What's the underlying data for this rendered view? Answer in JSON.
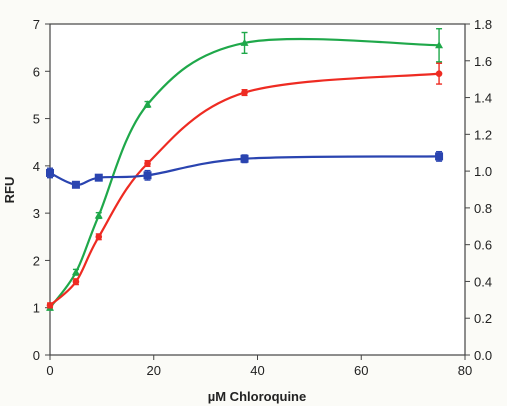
{
  "chart_data": {
    "type": "line",
    "title": "",
    "xlabel": "µM Chloroquine",
    "ylabel": "RFU",
    "ylabel_right": "",
    "xlim": [
      0,
      80
    ],
    "ylim": [
      0,
      7
    ],
    "ylim_right": [
      0,
      1.8
    ],
    "x_ticks": [
      "0",
      "20",
      "40",
      "60",
      "80"
    ],
    "y_ticks": [
      "0",
      "1",
      "2",
      "3",
      "4",
      "5",
      "6",
      "7"
    ],
    "y_ticks_right": [
      "0.0",
      "0.2",
      "0.4",
      "0.6",
      "0.8",
      "1.0",
      "1.2",
      "1.4",
      "1.6",
      "1.8"
    ],
    "grid": false,
    "legend": "none",
    "series": [
      {
        "color": "#1fa84a",
        "marker": "triangle",
        "x": [
          0,
          5,
          9.4,
          18.8,
          37.5,
          75
        ],
        "y": [
          1.0,
          1.75,
          2.95,
          5.3,
          6.6,
          6.55
        ],
        "err": [
          0.05,
          0.06,
          0.06,
          0.06,
          0.22,
          0.35
        ]
      },
      {
        "color": "#ee2b22",
        "marker": "circle",
        "x": [
          0,
          5,
          9.4,
          18.8,
          37.5,
          75
        ],
        "y": [
          1.05,
          1.55,
          2.5,
          4.05,
          5.55,
          5.95
        ],
        "err": [
          0.05,
          0.06,
          0.06,
          0.06,
          0.06,
          0.22
        ]
      },
      {
        "color": "#2a44b0",
        "marker": "square",
        "x": [
          0,
          5,
          9.4,
          18.8,
          37.5,
          75
        ],
        "y": [
          3.85,
          3.6,
          3.75,
          3.8,
          4.15,
          4.2
        ],
        "err": [
          0.1,
          0.05,
          0.05,
          0.1,
          0.08,
          0.1
        ]
      }
    ]
  }
}
